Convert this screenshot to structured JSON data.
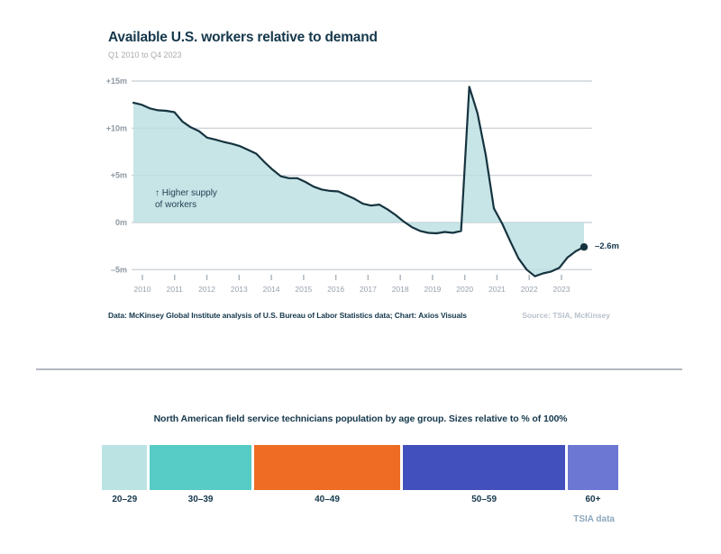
{
  "top_chart": {
    "annotation": [
      "↑ Higher supply",
      "of workers"
    ],
    "end_label": "–2.6m",
    "caption": "Data: McKinsey Global Institute analysis of U.S. Bureau of Labor Statistics data; Chart: Axios Visuals",
    "source": "Source: TSIA, McKinsey"
  },
  "bottom_chart": {
    "source": "TSIA data"
  },
  "chart_data": [
    {
      "type": "area",
      "title": "Available U.S. workers relative to demand",
      "subtitle": "Q1 2010 to Q4 2023",
      "x_description": "quarterly, Q1 2010 through Q4 2023",
      "values": [
        12.7,
        12.5,
        12.1,
        11.9,
        11.85,
        11.7,
        10.7,
        10.1,
        9.7,
        9.0,
        8.8,
        8.55,
        8.35,
        8.1,
        7.7,
        7.3,
        6.4,
        5.6,
        4.9,
        4.7,
        4.7,
        4.3,
        3.8,
        3.5,
        3.35,
        3.3,
        2.9,
        2.5,
        2.0,
        1.8,
        1.9,
        1.4,
        0.8,
        0.1,
        -0.5,
        -0.9,
        -1.1,
        -1.15,
        -1.0,
        -1.1,
        -0.9,
        14.4,
        11.6,
        7.2,
        1.5,
        -0.1,
        -2.0,
        -3.8,
        -5.0,
        -5.7,
        -5.4,
        -5.2,
        -4.8,
        -3.7,
        -3.05,
        -2.6
      ],
      "x_tick_labels": [
        "2010",
        "2011",
        "2012",
        "2013",
        "2014",
        "2015",
        "2016",
        "2017",
        "2018",
        "2019",
        "2020",
        "2021",
        "2022",
        "2023"
      ],
      "y_ticks": {
        "labels": [
          "+15m",
          "+10m",
          "+5m",
          "0m",
          "–5m"
        ],
        "values": [
          15,
          10,
          5,
          0,
          -5
        ]
      },
      "ylim": [
        -7.5,
        15.5
      ],
      "grid": "horizontal only",
      "end_point": {
        "label": "–2.6m",
        "value": -2.6
      },
      "annotation": "↑ Higher supply of workers",
      "colors": {
        "line": "#16333f",
        "fill": "#b9dee1",
        "grid": "#cfd4da",
        "axis_text": "#99a2ac"
      }
    },
    {
      "type": "bar",
      "subtype": "stacked-horizontal",
      "title": "North American field service technicians population by age group. Sizes relative to % of 100%",
      "categories": [
        "20–29",
        "30–39",
        "40–49",
        "50–59",
        "60+"
      ],
      "values_pct": [
        9,
        20,
        29,
        32,
        10
      ],
      "colors": [
        "#bce3e3",
        "#57cbc6",
        "#ee6c23",
        "#4250bd",
        "#6b77d2"
      ],
      "source": "TSIA data",
      "legend": "none",
      "axis": "none"
    }
  ]
}
